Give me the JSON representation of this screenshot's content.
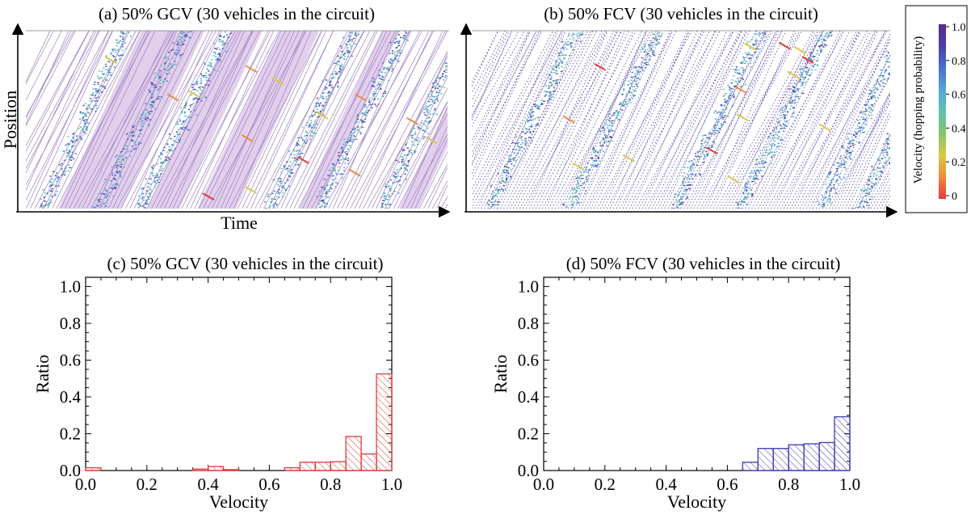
{
  "panels": {
    "a": {
      "title": "(a) 50% GCV (30 vehicles in the circuit)",
      "xlabel": "Time",
      "ylabel": "Position"
    },
    "b": {
      "title": "(b) 50% FCV (30 vehicles in the circuit)"
    }
  },
  "colorbar": {
    "label": "Velocity (hopping probability)",
    "ticks": [
      "1.0",
      "0.8",
      "0.6",
      "0.4",
      "0.2",
      "0"
    ],
    "colors": [
      "#e23b3b",
      "#ef8a3a",
      "#dcc84a",
      "#86c46a",
      "#5cc2b0",
      "#52a6d8",
      "#4a6fd0",
      "#4b3fa8",
      "#5a2a86"
    ]
  },
  "chart_data": [
    {
      "type": "bar",
      "title": "(c) 50% GCV (30 vehicles in the circuit)",
      "xlabel": "Velocity",
      "ylabel": "Ratio",
      "xlim": [
        0,
        1
      ],
      "ylim": [
        0,
        1.05
      ],
      "xticks": [
        "0.0",
        "0.2",
        "0.4",
        "0.6",
        "0.8",
        "1.0"
      ],
      "yticks": [
        "0.0",
        "0.2",
        "0.4",
        "0.6",
        "0.8",
        "1.0"
      ],
      "bin_width": 0.05,
      "color": "#e03a3a",
      "hatch": "diagonal",
      "bins": [
        {
          "x0": 0.0,
          "v": 0.015
        },
        {
          "x0": 0.35,
          "v": 0.008
        },
        {
          "x0": 0.4,
          "v": 0.022
        },
        {
          "x0": 0.45,
          "v": 0.005
        },
        {
          "x0": 0.65,
          "v": 0.015
        },
        {
          "x0": 0.7,
          "v": 0.045
        },
        {
          "x0": 0.75,
          "v": 0.045
        },
        {
          "x0": 0.8,
          "v": 0.048
        },
        {
          "x0": 0.85,
          "v": 0.185
        },
        {
          "x0": 0.9,
          "v": 0.09
        },
        {
          "x0": 0.95,
          "v": 0.525
        }
      ]
    },
    {
      "type": "bar",
      "title": "(d) 50% FCV (30 vehicles in the circuit)",
      "xlabel": "Velocity",
      "ylabel": "Ratio",
      "xlim": [
        0,
        1
      ],
      "ylim": [
        0,
        1.05
      ],
      "xticks": [
        "0.0",
        "0.2",
        "0.4",
        "0.6",
        "0.8",
        "1.0"
      ],
      "yticks": [
        "0.0",
        "0.2",
        "0.4",
        "0.6",
        "0.8",
        "1.0"
      ],
      "bin_width": 0.05,
      "color": "#3a3ab8",
      "hatch": "diagonal",
      "bins": [
        {
          "x0": 0.65,
          "v": 0.045
        },
        {
          "x0": 0.7,
          "v": 0.12
        },
        {
          "x0": 0.75,
          "v": 0.12
        },
        {
          "x0": 0.8,
          "v": 0.14
        },
        {
          "x0": 0.85,
          "v": 0.145
        },
        {
          "x0": 0.9,
          "v": 0.152
        },
        {
          "x0": 0.95,
          "v": 0.292
        }
      ]
    }
  ]
}
